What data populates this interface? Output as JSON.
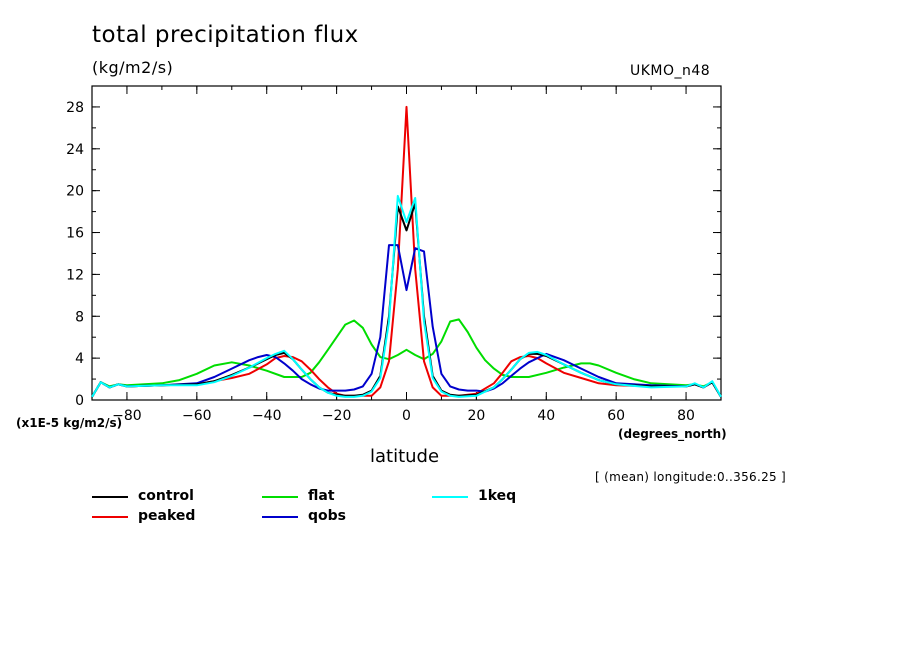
{
  "header": {
    "title": "total precipitation flux",
    "units": "(kg/m2/s)",
    "model": "UKMO_n48",
    "scale_label": "(x1E-5 kg/m2/s)",
    "x_units": "(degrees_north)",
    "x_label": "latitude",
    "mean_note": "[ (mean) longitude:0..356.25 ]"
  },
  "legend": [
    {
      "name": "control",
      "color": "#000000"
    },
    {
      "name": "flat",
      "color": "#00dd00"
    },
    {
      "name": "1keq",
      "color": "#00ffff"
    },
    {
      "name": "peaked",
      "color": "#ee0000"
    },
    {
      "name": "qobs",
      "color": "#0000cc"
    }
  ],
  "chart_data": {
    "type": "line",
    "title": "total precipitation flux",
    "xlabel": "latitude",
    "ylabel": "(kg/m2/s)",
    "xlim": [
      -90,
      90
    ],
    "ylim": [
      0,
      30
    ],
    "xticks": [
      -80,
      -60,
      -40,
      -20,
      0,
      20,
      40,
      60,
      80
    ],
    "yticks": [
      0,
      4,
      8,
      12,
      16,
      20,
      24,
      28
    ],
    "grid": false,
    "legend_position": "bottom",
    "series": [
      {
        "name": "flat",
        "color": "#00dd00",
        "x": [
          -90,
          -87.5,
          -85,
          -82.5,
          -80,
          -75,
          -70,
          -65,
          -60,
          -55,
          -50,
          -45,
          -40,
          -35,
          -30,
          -27.5,
          -25,
          -22.5,
          -20,
          -17.5,
          -15,
          -12.5,
          -10,
          -7.5,
          -5,
          -2.5,
          0,
          2.5,
          5,
          7.5,
          10,
          12.5,
          15,
          17.5,
          20,
          22.5,
          25,
          27.5,
          30,
          35,
          40,
          45,
          50,
          52.5,
          55,
          60,
          65,
          70,
          75,
          80,
          82.5,
          85,
          87.5,
          90
        ],
        "y": [
          0.3,
          1.7,
          1.3,
          1.5,
          1.4,
          1.5,
          1.6,
          1.9,
          2.5,
          3.3,
          3.6,
          3.3,
          2.8,
          2.2,
          2.2,
          2.6,
          3.6,
          4.8,
          6.0,
          7.2,
          7.6,
          6.9,
          5.3,
          4.1,
          3.9,
          4.3,
          4.8,
          4.3,
          3.9,
          4.4,
          5.6,
          7.5,
          7.7,
          6.5,
          5.0,
          3.8,
          3.0,
          2.4,
          2.2,
          2.2,
          2.6,
          3.1,
          3.5,
          3.5,
          3.3,
          2.6,
          2.0,
          1.6,
          1.5,
          1.4,
          1.5,
          1.3,
          1.7,
          0.3
        ]
      },
      {
        "name": "peaked",
        "color": "#ee0000",
        "x": [
          -90,
          -87.5,
          -85,
          -82.5,
          -80,
          -70,
          -60,
          -50,
          -45,
          -40,
          -37.5,
          -35,
          -32.5,
          -30,
          -27.5,
          -25,
          -22.5,
          -20,
          -17.5,
          -15,
          -12.5,
          -10,
          -7.5,
          -5,
          -2.5,
          0,
          2.5,
          5,
          7.5,
          10,
          12.5,
          15,
          20,
          25,
          27.5,
          30,
          32.5,
          35,
          37.5,
          40,
          45,
          50,
          55,
          60,
          70,
          80,
          82.5,
          85,
          87.5,
          90
        ],
        "y": [
          0.3,
          1.7,
          1.2,
          1.5,
          1.3,
          1.4,
          1.5,
          2.1,
          2.5,
          3.4,
          4.0,
          4.2,
          4.1,
          3.7,
          2.9,
          2.0,
          1.2,
          0.6,
          0.4,
          0.4,
          0.4,
          0.4,
          1.2,
          3.7,
          12.5,
          28.0,
          12.5,
          3.7,
          1.2,
          0.4,
          0.4,
          0.4,
          0.6,
          1.6,
          2.6,
          3.7,
          4.1,
          4.2,
          4.0,
          3.5,
          2.6,
          2.1,
          1.6,
          1.4,
          1.3,
          1.3,
          1.5,
          1.2,
          1.7,
          0.3
        ]
      },
      {
        "name": "qobs",
        "color": "#0000cc",
        "x": [
          -90,
          -87.5,
          -85,
          -82.5,
          -80,
          -70,
          -60,
          -55,
          -50,
          -45,
          -42.5,
          -40,
          -37.5,
          -35,
          -32.5,
          -30,
          -27.5,
          -25,
          -22.5,
          -20,
          -17.5,
          -15,
          -12.5,
          -10,
          -7.5,
          -5,
          -2.5,
          0,
          2.5,
          5,
          7.5,
          10,
          12.5,
          15,
          17.5,
          20,
          22.5,
          25,
          27.5,
          30,
          32.5,
          35,
          37.5,
          40,
          45,
          50,
          55,
          60,
          70,
          80,
          82.5,
          85,
          87.5,
          90
        ],
        "y": [
          0.3,
          1.7,
          1.2,
          1.5,
          1.3,
          1.4,
          1.6,
          2.2,
          3.0,
          3.8,
          4.1,
          4.3,
          4.1,
          3.5,
          2.8,
          2.0,
          1.5,
          1.1,
          0.9,
          0.9,
          0.9,
          1.0,
          1.3,
          2.5,
          6.0,
          14.8,
          14.8,
          10.5,
          14.5,
          14.2,
          7.0,
          2.5,
          1.3,
          1.0,
          0.9,
          0.9,
          0.8,
          1.1,
          1.6,
          2.3,
          3.0,
          3.6,
          4.0,
          4.4,
          3.8,
          3.0,
          2.2,
          1.6,
          1.4,
          1.3,
          1.5,
          1.2,
          1.7,
          0.3
        ]
      },
      {
        "name": "control",
        "color": "#000000",
        "x": [
          -90,
          -87.5,
          -85,
          -82.5,
          -80,
          -70,
          -60,
          -55,
          -50,
          -45,
          -40,
          -37.5,
          -35,
          -32.5,
          -30,
          -27.5,
          -25,
          -22.5,
          -20,
          -17.5,
          -15,
          -12.5,
          -10,
          -7.5,
          -5,
          -2.5,
          0,
          2.5,
          5,
          7.5,
          10,
          12.5,
          15,
          20,
          25,
          27.5,
          30,
          32.5,
          35,
          37.5,
          40,
          45,
          50,
          55,
          60,
          70,
          80,
          82.5,
          85,
          87.5,
          90
        ],
        "y": [
          0.3,
          1.7,
          1.2,
          1.5,
          1.3,
          1.4,
          1.5,
          1.8,
          2.4,
          3.1,
          3.9,
          4.3,
          4.5,
          3.9,
          2.9,
          2.0,
          1.2,
          0.7,
          0.5,
          0.4,
          0.4,
          0.5,
          0.9,
          2.3,
          8.0,
          18.5,
          16.2,
          18.8,
          8.0,
          2.3,
          0.9,
          0.5,
          0.4,
          0.5,
          1.2,
          2.0,
          2.9,
          3.9,
          4.4,
          4.4,
          4.2,
          3.4,
          2.6,
          1.9,
          1.5,
          1.3,
          1.3,
          1.5,
          1.2,
          1.7,
          0.3
        ]
      },
      {
        "name": "1keq",
        "color": "#00ffff",
        "x": [
          -90,
          -87.5,
          -85,
          -82.5,
          -80,
          -70,
          -60,
          -55,
          -50,
          -45,
          -40,
          -37.5,
          -35,
          -32.5,
          -30,
          -27.5,
          -25,
          -22.5,
          -20,
          -17.5,
          -15,
          -12.5,
          -10,
          -7.5,
          -5,
          -2.5,
          0,
          2.5,
          5,
          7.5,
          10,
          12.5,
          15,
          20,
          25,
          27.5,
          30,
          32.5,
          35,
          37.5,
          40,
          45,
          50,
          55,
          60,
          70,
          80,
          82.5,
          85,
          87.5,
          90
        ],
        "y": [
          0.3,
          1.7,
          1.2,
          1.5,
          1.3,
          1.4,
          1.4,
          1.7,
          2.3,
          3.1,
          4.0,
          4.4,
          4.7,
          3.9,
          2.9,
          2.0,
          1.2,
          0.7,
          0.4,
          0.3,
          0.3,
          0.4,
          0.8,
          2.1,
          7.5,
          19.5,
          17.0,
          19.3,
          7.5,
          2.1,
          0.8,
          0.4,
          0.3,
          0.4,
          1.2,
          2.0,
          2.9,
          3.9,
          4.5,
          4.6,
          4.3,
          3.4,
          2.6,
          1.9,
          1.5,
          1.2,
          1.3,
          1.6,
          1.2,
          1.8,
          0.3
        ]
      }
    ]
  }
}
